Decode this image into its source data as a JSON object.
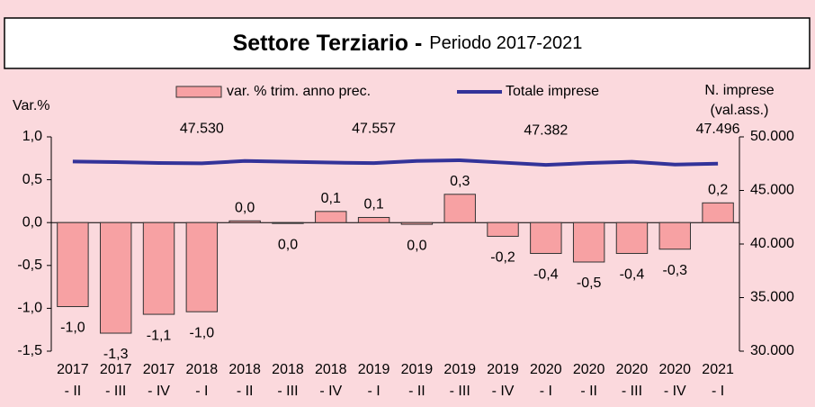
{
  "chart_data": {
    "type": "bar-line",
    "title": "Settore Terziario -",
    "subtitle": "Periodo 2017-2021",
    "y_label": "Var.%",
    "y2_label": [
      "N. imprese",
      "(val.ass.)"
    ],
    "categories": [
      [
        "2017",
        "- II"
      ],
      [
        "2017",
        "- III"
      ],
      [
        "2017",
        "- IV"
      ],
      [
        "2018",
        "- I"
      ],
      [
        "2018",
        "- II"
      ],
      [
        "2018",
        "- III"
      ],
      [
        "2018",
        "- IV"
      ],
      [
        "2019",
        "- I"
      ],
      [
        "2019",
        "- II"
      ],
      [
        "2019",
        "- III"
      ],
      [
        "2019",
        "- IV"
      ],
      [
        "2020",
        "- I"
      ],
      [
        "2020",
        "- II"
      ],
      [
        "2020",
        "- III"
      ],
      [
        "2020",
        "- IV"
      ],
      [
        "2021",
        "- I"
      ]
    ],
    "series": [
      {
        "name": "var. % trim. anno prec.",
        "type": "bar",
        "color": "#f7a1a3",
        "values": [
          -0.98,
          -1.29,
          -1.07,
          -1.04,
          0.02,
          -0.01,
          0.13,
          0.06,
          -0.02,
          0.33,
          -0.16,
          -0.36,
          -0.46,
          -0.36,
          -0.31,
          0.23
        ],
        "value_labels": [
          "-1,0",
          "-1,3",
          "-1,1",
          "-1,0",
          "0,0",
          "0,0",
          "0,1",
          "0,1",
          "0,0",
          "0,3",
          "-0,2",
          "-0,4",
          "-0,5",
          "-0,4",
          "-0,3",
          "0,2"
        ]
      },
      {
        "name": "Totale imprese",
        "type": "line",
        "axis": "y2",
        "color": "#333399",
        "values": [
          47700,
          47650,
          47560,
          47530,
          47750,
          47680,
          47600,
          47557,
          47750,
          47820,
          47600,
          47382,
          47560,
          47680,
          47420,
          47496
        ],
        "value_labels": [
          null,
          null,
          null,
          "47.530",
          null,
          null,
          null,
          "47.557",
          null,
          null,
          null,
          "47.382",
          null,
          null,
          null,
          "47.496"
        ]
      }
    ],
    "ylim": [
      -1.5,
      1.0
    ],
    "yticks": [
      {
        "value": -1.5,
        "label": "-1,5"
      },
      {
        "value": -1.0,
        "label": "-1,0"
      },
      {
        "value": -0.5,
        "label": "-0,5"
      },
      {
        "value": 0,
        "label": "0,0"
      },
      {
        "value": 0.5,
        "label": "0,5"
      },
      {
        "value": 1.0,
        "label": "1,0"
      }
    ],
    "y2lim": [
      30000,
      50000
    ],
    "y2ticks": [
      {
        "value": 30000,
        "label": "30.000"
      },
      {
        "value": 35000,
        "label": "35.000"
      },
      {
        "value": 40000,
        "label": "40.000"
      },
      {
        "value": 45000,
        "label": "45.000"
      },
      {
        "value": 50000,
        "label": "50.000"
      }
    ]
  }
}
